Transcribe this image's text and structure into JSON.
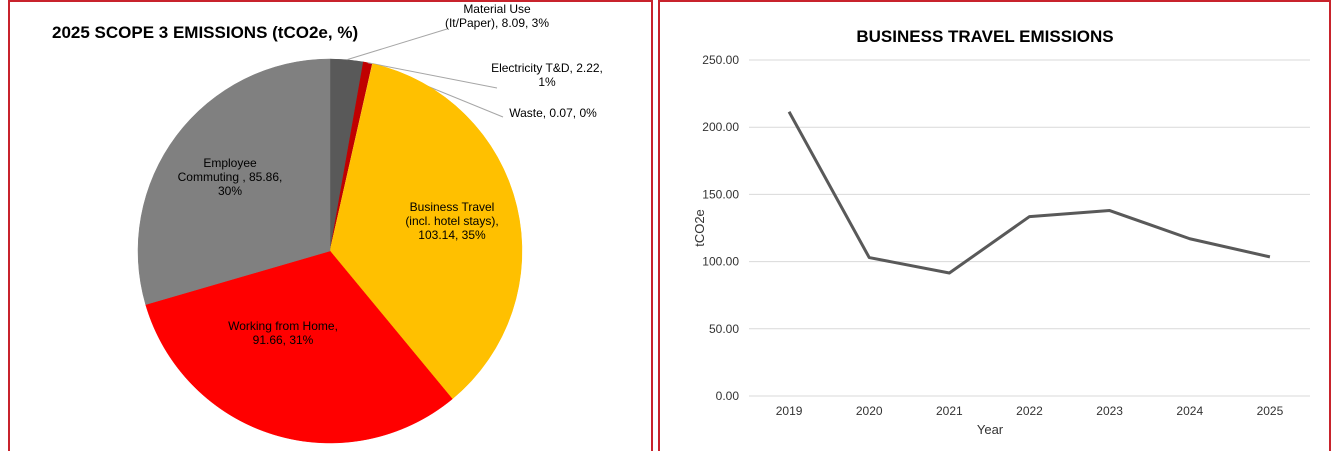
{
  "chart_data": [
    {
      "type": "pie",
      "title": "2025 SCOPE 3 EMISSIONS (tCO2e, %)",
      "values": [
        8.09,
        2.22,
        0.07,
        103.14,
        91.66,
        85.86
      ],
      "value_labels": [
        [
          "Material Use",
          "(It/Paper), 8.09, 3%"
        ],
        [
          "Electricity T&D, 2.22,",
          "1%"
        ],
        [
          "Waste, 0.07, 0%"
        ],
        [
          "Business Travel",
          "(incl. hotel stays),",
          "103.14, 35%"
        ],
        [
          "Working from Home,",
          "91.66, 31%"
        ],
        [
          "Employee",
          "Commuting , 85.86,",
          "30%"
        ]
      ],
      "colors": [
        "#595959",
        "#c00000",
        "#ffd966",
        "#ffc000",
        "#ff0000",
        "#808080"
      ]
    },
    {
      "type": "line",
      "title": "BUSINESS TRAVEL EMISSIONS",
      "x_label": "Year",
      "y_label": "tCO2e",
      "categories": [
        "2019",
        "2020",
        "2021",
        "2022",
        "2023",
        "2024",
        "2025"
      ],
      "series": [
        {
          "name": "Business Travel",
          "color": "#595959",
          "values": [
            211.5,
            103,
            91.5,
            133.5,
            138,
            117,
            103.5
          ]
        }
      ],
      "ylim": [
        0,
        250
      ],
      "yticks": [
        {
          "value": 0,
          "label": "0.00"
        },
        {
          "value": 50,
          "label": "50.00"
        },
        {
          "value": 100,
          "label": "100.00"
        },
        {
          "value": 150,
          "label": "150.00"
        },
        {
          "value": 200,
          "label": "200.00"
        },
        {
          "value": 250,
          "label": "250.00"
        }
      ],
      "grid": true
    }
  ]
}
